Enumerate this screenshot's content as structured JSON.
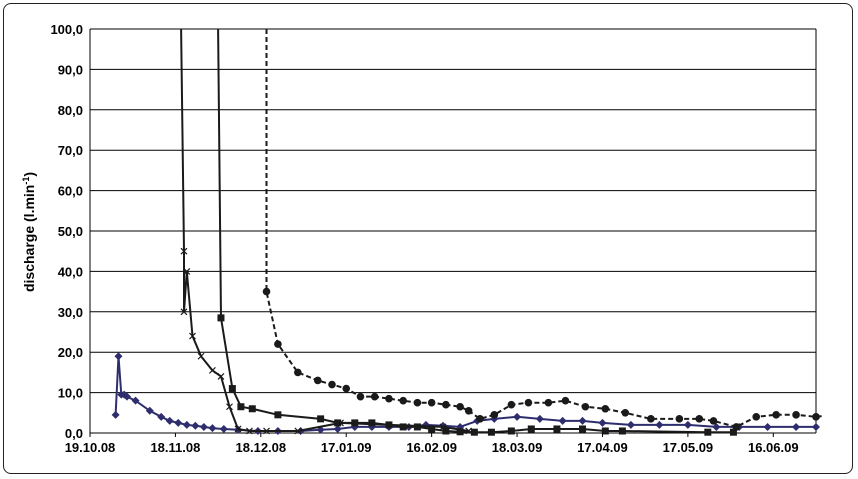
{
  "chart_data": {
    "type": "line",
    "ylabel": "discharge (l.min",
    "ylabel_sup": "-1",
    "ylabel_close": ")",
    "ylim": [
      0,
      100
    ],
    "xlim": [
      "2008-10-19",
      "2009-07-01"
    ],
    "grid": true,
    "y_ticks": [
      "0,0",
      "10,0",
      "20,0",
      "30,0",
      "40,0",
      "50,0",
      "60,0",
      "70,0",
      "80,0",
      "90,0",
      "100,0"
    ],
    "x_ticks": [
      "19.10.08",
      "18.11.08",
      "18.12.08",
      "17.01.09",
      "16.02.09",
      "18.03.09",
      "17.04.09",
      "17.05.09",
      "16.06.09"
    ],
    "series": [
      {
        "marker": "diamond",
        "line": "solid",
        "color": "#2e2e6e",
        "points": [
          [
            "2008-10-28",
            4.5
          ],
          [
            "2008-10-29",
            19.0
          ],
          [
            "2008-10-30",
            9.5
          ],
          [
            "2008-10-31",
            9.5
          ],
          [
            "2008-11-01",
            9.0
          ],
          [
            "2008-11-04",
            8.0
          ],
          [
            "2008-11-09",
            5.5
          ],
          [
            "2008-11-13",
            4.0
          ],
          [
            "2008-11-16",
            3.0
          ],
          [
            "2008-11-19",
            2.5
          ],
          [
            "2008-11-22",
            2.0
          ],
          [
            "2008-11-25",
            1.8
          ],
          [
            "2008-11-28",
            1.5
          ],
          [
            "2008-12-01",
            1.2
          ],
          [
            "2008-12-05",
            1.0
          ],
          [
            "2008-12-10",
            0.8
          ],
          [
            "2008-12-17",
            0.5
          ],
          [
            "2008-12-24",
            0.5
          ],
          [
            "2009-01-01",
            0.5
          ],
          [
            "2009-01-08",
            0.8
          ],
          [
            "2009-01-14",
            1.0
          ],
          [
            "2009-01-20",
            1.5
          ],
          [
            "2009-01-26",
            1.5
          ],
          [
            "2009-02-01",
            1.5
          ],
          [
            "2009-02-08",
            1.5
          ],
          [
            "2009-02-14",
            2.0
          ],
          [
            "2009-02-20",
            1.8
          ],
          [
            "2009-02-26",
            1.5
          ],
          [
            "2009-03-04",
            3.0
          ],
          [
            "2009-03-10",
            3.5
          ],
          [
            "2009-03-18",
            4.0
          ],
          [
            "2009-03-26",
            3.5
          ],
          [
            "2009-04-03",
            3.0
          ],
          [
            "2009-04-10",
            3.0
          ],
          [
            "2009-04-17",
            2.5
          ],
          [
            "2009-04-27",
            2.0
          ],
          [
            "2009-05-07",
            2.0
          ],
          [
            "2009-05-17",
            2.0
          ],
          [
            "2009-05-27",
            1.5
          ],
          [
            "2009-06-04",
            1.5
          ],
          [
            "2009-06-14",
            1.5
          ],
          [
            "2009-06-24",
            1.5
          ],
          [
            "2009-07-01",
            1.5
          ]
        ]
      },
      {
        "marker": "cross",
        "line": "solid",
        "color": "#1a1a1a",
        "points": [
          [
            "2008-11-20",
            100.0
          ],
          [
            "2008-11-21",
            45.0
          ],
          [
            "2008-11-21",
            30.0
          ],
          [
            "2008-11-22",
            40.0
          ],
          [
            "2008-11-24",
            24.0
          ],
          [
            "2008-11-27",
            19.0
          ],
          [
            "2008-12-01",
            15.5
          ],
          [
            "2008-12-04",
            14.0
          ],
          [
            "2008-12-07",
            6.5
          ],
          [
            "2008-12-10",
            1.0
          ],
          [
            "2008-12-14",
            0.5
          ],
          [
            "2008-12-20",
            0.5
          ],
          [
            "2008-12-31",
            0.5
          ],
          [
            "2009-01-15",
            2.5
          ],
          [
            "2009-02-01",
            2.0
          ],
          [
            "2009-02-20",
            1.5
          ],
          [
            "2009-03-01",
            0.5
          ]
        ]
      },
      {
        "marker": "square",
        "line": "solid",
        "color": "#1a1a1a",
        "points": [
          [
            "2008-12-03",
            100.0
          ],
          [
            "2008-12-04",
            28.5
          ],
          [
            "2008-12-08",
            11.0
          ],
          [
            "2008-12-11",
            6.5
          ],
          [
            "2008-12-15",
            6.0
          ],
          [
            "2008-12-24",
            4.5
          ],
          [
            "2009-01-08",
            3.5
          ],
          [
            "2009-01-14",
            2.5
          ],
          [
            "2009-01-20",
            2.5
          ],
          [
            "2009-01-26",
            2.5
          ],
          [
            "2009-02-01",
            2.0
          ],
          [
            "2009-02-06",
            1.5
          ],
          [
            "2009-02-11",
            1.5
          ],
          [
            "2009-02-16",
            1.0
          ],
          [
            "2009-02-21",
            0.5
          ],
          [
            "2009-02-26",
            0.3
          ],
          [
            "2009-03-03",
            0.2
          ],
          [
            "2009-03-09",
            0.2
          ],
          [
            "2009-03-16",
            0.5
          ],
          [
            "2009-03-23",
            1.0
          ],
          [
            "2009-04-01",
            1.0
          ],
          [
            "2009-04-10",
            1.0
          ],
          [
            "2009-04-18",
            0.5
          ],
          [
            "2009-04-24",
            0.5
          ],
          [
            "2009-05-24",
            0.2
          ],
          [
            "2009-06-02",
            0.2
          ]
        ]
      },
      {
        "marker": "circle",
        "line": "dashed",
        "color": "#1a1a1a",
        "points": [
          [
            "2008-12-20",
            100.0
          ],
          [
            "2008-12-20",
            35.0
          ],
          [
            "2008-12-24",
            22.0
          ],
          [
            "2008-12-31",
            15.0
          ],
          [
            "2009-01-07",
            13.0
          ],
          [
            "2009-01-12",
            12.0
          ],
          [
            "2009-01-17",
            11.0
          ],
          [
            "2009-01-22",
            9.0
          ],
          [
            "2009-01-27",
            9.0
          ],
          [
            "2009-02-01",
            8.5
          ],
          [
            "2009-02-06",
            8.0
          ],
          [
            "2009-02-11",
            7.5
          ],
          [
            "2009-02-16",
            7.5
          ],
          [
            "2009-02-21",
            7.0
          ],
          [
            "2009-02-26",
            6.5
          ],
          [
            "2009-03-01",
            5.5
          ],
          [
            "2009-03-05",
            3.5
          ],
          [
            "2009-03-10",
            4.5
          ],
          [
            "2009-03-16",
            7.0
          ],
          [
            "2009-03-22",
            7.5
          ],
          [
            "2009-03-29",
            7.5
          ],
          [
            "2009-04-04",
            8.0
          ],
          [
            "2009-04-11",
            6.5
          ],
          [
            "2009-04-18",
            6.0
          ],
          [
            "2009-04-25",
            5.0
          ],
          [
            "2009-05-04",
            3.5
          ],
          [
            "2009-05-14",
            3.5
          ],
          [
            "2009-05-21",
            3.5
          ],
          [
            "2009-05-26",
            3.0
          ],
          [
            "2009-06-03",
            1.5
          ],
          [
            "2009-06-10",
            4.0
          ],
          [
            "2009-06-17",
            4.5
          ],
          [
            "2009-06-24",
            4.5
          ],
          [
            "2009-07-01",
            4.0
          ],
          [
            "2009-07-07",
            4.5
          ]
        ]
      }
    ]
  }
}
